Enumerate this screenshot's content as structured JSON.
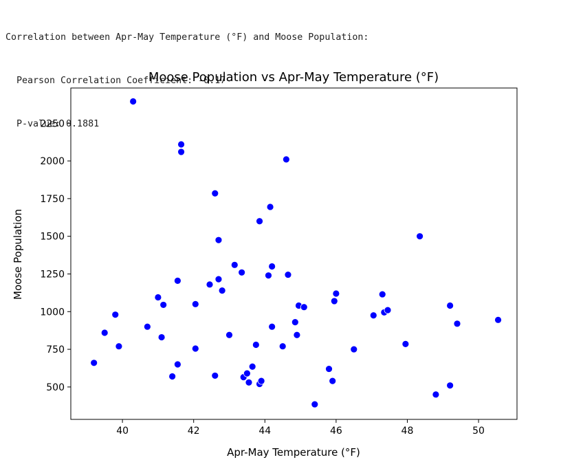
{
  "console": {
    "line1": "Correlation between Apr-May Temperature (°F) and Moose Population:",
    "line2": "Pearson Correlation Coefficient: -0.17",
    "line3": "P-value: 0.1881"
  },
  "chart_data": {
    "type": "scatter",
    "title": "Moose Population vs Apr-May Temperature (°F)",
    "xlabel": "Apr-May Temperature (°F)",
    "ylabel": "Moose Population",
    "xlim": [
      38.55,
      51.08
    ],
    "ylim": [
      285,
      2484
    ],
    "xticks": [
      40,
      42,
      44,
      46,
      48,
      50
    ],
    "yticks": [
      500,
      750,
      1000,
      1250,
      1500,
      1750,
      2000,
      2250
    ],
    "marker_color": "#0000ff",
    "grid": false,
    "points": [
      {
        "x": 39.2,
        "y": 660
      },
      {
        "x": 39.5,
        "y": 860
      },
      {
        "x": 39.8,
        "y": 980
      },
      {
        "x": 39.9,
        "y": 770
      },
      {
        "x": 40.3,
        "y": 2395
      },
      {
        "x": 40.7,
        "y": 900
      },
      {
        "x": 41.0,
        "y": 1095
      },
      {
        "x": 41.1,
        "y": 830
      },
      {
        "x": 41.15,
        "y": 1045
      },
      {
        "x": 41.4,
        "y": 570
      },
      {
        "x": 41.55,
        "y": 650
      },
      {
        "x": 41.55,
        "y": 1205
      },
      {
        "x": 41.65,
        "y": 2110
      },
      {
        "x": 41.65,
        "y": 2060
      },
      {
        "x": 42.05,
        "y": 1050
      },
      {
        "x": 42.05,
        "y": 755
      },
      {
        "x": 42.45,
        "y": 1180
      },
      {
        "x": 42.6,
        "y": 1785
      },
      {
        "x": 42.6,
        "y": 575
      },
      {
        "x": 42.7,
        "y": 1475
      },
      {
        "x": 42.7,
        "y": 1215
      },
      {
        "x": 42.8,
        "y": 1140
      },
      {
        "x": 43.0,
        "y": 845
      },
      {
        "x": 43.15,
        "y": 1310
      },
      {
        "x": 43.35,
        "y": 1260
      },
      {
        "x": 43.4,
        "y": 565
      },
      {
        "x": 43.5,
        "y": 590
      },
      {
        "x": 43.55,
        "y": 530
      },
      {
        "x": 43.65,
        "y": 635
      },
      {
        "x": 43.75,
        "y": 780
      },
      {
        "x": 43.85,
        "y": 1600
      },
      {
        "x": 43.85,
        "y": 520
      },
      {
        "x": 43.9,
        "y": 540
      },
      {
        "x": 44.1,
        "y": 1240
      },
      {
        "x": 44.15,
        "y": 1695
      },
      {
        "x": 44.2,
        "y": 1300
      },
      {
        "x": 44.2,
        "y": 900
      },
      {
        "x": 44.5,
        "y": 770
      },
      {
        "x": 44.6,
        "y": 2010
      },
      {
        "x": 44.65,
        "y": 1245
      },
      {
        "x": 44.85,
        "y": 930
      },
      {
        "x": 44.9,
        "y": 845
      },
      {
        "x": 44.95,
        "y": 1040
      },
      {
        "x": 45.1,
        "y": 1030
      },
      {
        "x": 45.4,
        "y": 385
      },
      {
        "x": 45.8,
        "y": 620
      },
      {
        "x": 45.9,
        "y": 540
      },
      {
        "x": 45.95,
        "y": 1070
      },
      {
        "x": 46.0,
        "y": 1120
      },
      {
        "x": 46.5,
        "y": 750
      },
      {
        "x": 47.05,
        "y": 975
      },
      {
        "x": 47.3,
        "y": 1115
      },
      {
        "x": 47.35,
        "y": 995
      },
      {
        "x": 47.45,
        "y": 1010
      },
      {
        "x": 47.95,
        "y": 785
      },
      {
        "x": 48.35,
        "y": 1500
      },
      {
        "x": 48.8,
        "y": 450
      },
      {
        "x": 49.2,
        "y": 1040
      },
      {
        "x": 49.2,
        "y": 510
      },
      {
        "x": 49.4,
        "y": 920
      },
      {
        "x": 50.55,
        "y": 945
      }
    ]
  }
}
